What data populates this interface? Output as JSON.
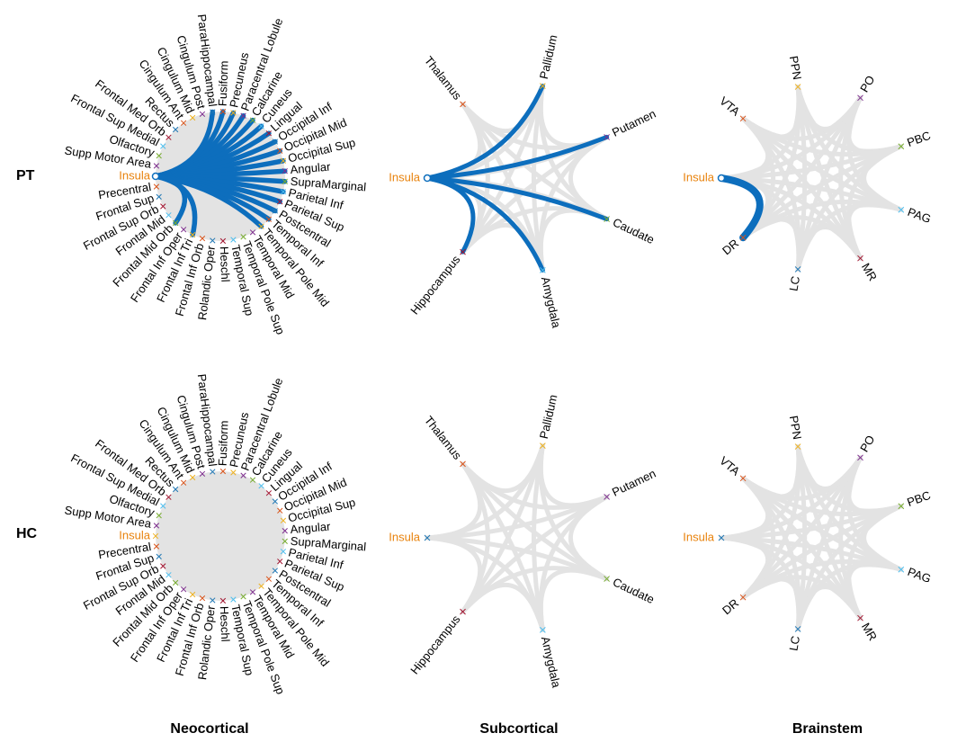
{
  "figure": {
    "row_labels": [
      "PT",
      "HC"
    ],
    "column_titles": [
      "Neocortical",
      "Subcortical",
      "Brainstem"
    ]
  },
  "colors": {
    "highlight_edge": "#0d6ebd",
    "background_edge": "#e3e3e3",
    "insula_label": "#e8820c",
    "text": "#000000",
    "marker_palette": [
      "#1f77b4",
      "#d95319",
      "#edb120",
      "#7e2f8e",
      "#77ac30",
      "#4dbeee",
      "#a2142f"
    ]
  },
  "panels": {
    "neocortical": {
      "labels": [
        "ParaHippocampal",
        "Fusiform",
        "Precuneus",
        "Paracentral Lobule",
        "Calcarine",
        "Cuneus",
        "Lingual",
        "Occipital Inf",
        "Occipital Mid",
        "Occipital Sup",
        "Angular",
        "SupraMarginal",
        "Parietal Inf",
        "Parietal Sup",
        "Postcentral",
        "Temporal Inf",
        "Temporal Pole Mid",
        "Temporal Mid",
        "Temporal Pole Sup",
        "Temporal Sup",
        "Heschl",
        "Rolandic Oper",
        "Frontal Inf Orb",
        "Frontal Inf Tri",
        "Frontal Inf Oper",
        "Frontal Mid Orb",
        "Frontal Mid",
        "Frontal Sup Orb",
        "Frontal Sup",
        "Precentral",
        "Insula",
        "Supp Motor Area",
        "Olfactory",
        "Frontal Sup Medial",
        "Frontal Med Orb",
        "Rectus",
        "Cingulum Ant",
        "Cingulum Mid",
        "Cingulum Post"
      ],
      "seed": "Insula",
      "PT_strong_edges": [
        "ParaHippocampal",
        "Fusiform",
        "Precuneus",
        "Paracentral Lobule",
        "Calcarine",
        "Cuneus",
        "Lingual",
        "Occipital Inf",
        "Occipital Mid",
        "Occipital Sup",
        "Angular",
        "SupraMarginal",
        "Parietal Inf",
        "Parietal Sup",
        "Postcentral",
        "Temporal Inf",
        "Temporal Pole Mid",
        "Frontal Inf Tri",
        "Frontal Mid Orb"
      ]
    },
    "subcortical": {
      "labels": [
        "Insula",
        "Thalamus",
        "Pallidum",
        "Putamen",
        "Caudate",
        "Amygdala",
        "Hippocampus"
      ],
      "seed": "Insula",
      "PT_strong_edges": [
        "Pallidum",
        "Putamen",
        "Caudate",
        "Amygdala",
        "Hippocampus"
      ]
    },
    "brainstem": {
      "labels": [
        "Insula",
        "VTA",
        "PPN",
        "PO",
        "PBC",
        "PAG",
        "MR",
        "LC",
        "DR"
      ],
      "seed": "Insula",
      "PT_strong_edges": [
        "DR"
      ]
    }
  }
}
